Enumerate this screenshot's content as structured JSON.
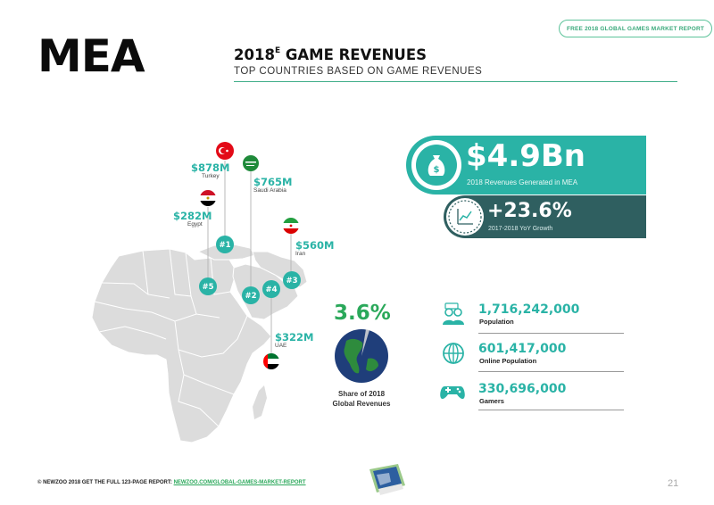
{
  "header": {
    "region": "MEA",
    "report_pill": "FREE 2018 GLOBAL GAMES MARKET REPORT",
    "title_year": "2018",
    "title_superscript": "E",
    "title_rest": "GAME REVENUES",
    "subtitle": "TOP COUNTRIES BASED ON GAME REVENUES"
  },
  "countries": [
    {
      "rank": "#1",
      "value": "$878M",
      "name": "Turkey",
      "flag": "turkey-flag"
    },
    {
      "rank": "#2",
      "value": "$765M",
      "name": "Saudi Arabia",
      "flag": "saudi-arabia-flag"
    },
    {
      "rank": "#3",
      "value": "$560M",
      "name": "Iran",
      "flag": "iran-flag"
    },
    {
      "rank": "#4",
      "value": "$322M",
      "name": "UAE",
      "flag": "uae-flag"
    },
    {
      "rank": "#5",
      "value": "$282M",
      "name": "Egypt",
      "flag": "egypt-flag"
    }
  ],
  "revenue": {
    "value": "$4.9Bn",
    "label": "2018 Revenues Generated in MEA"
  },
  "growth": {
    "value": "+23.6%",
    "label": "2017-2018 YoY Growth"
  },
  "share": {
    "value": "3.6%",
    "label_line1": "Share of 2018",
    "label_line2": "Global Revenues"
  },
  "stats": [
    {
      "value": "1,716,242,000",
      "label": "Population",
      "icon": "people-icon"
    },
    {
      "value": "601,417,000",
      "label": "Online Population",
      "icon": "globe-icon"
    },
    {
      "value": "330,696,000",
      "label": "Gamers",
      "icon": "gamepad-icon"
    }
  ],
  "footer": {
    "copyright": "© NEWZOO 2018  GET THE FULL 123-PAGE REPORT: ",
    "link": "NEWZOO.COM/GLOBAL-GAMES-MARKET-REPORT",
    "page": "21"
  },
  "colors": {
    "teal": "#2ab3a6",
    "dark_teal": "#2f5f60",
    "green": "#2aa85a",
    "map_gray": "#d9d9d9"
  }
}
